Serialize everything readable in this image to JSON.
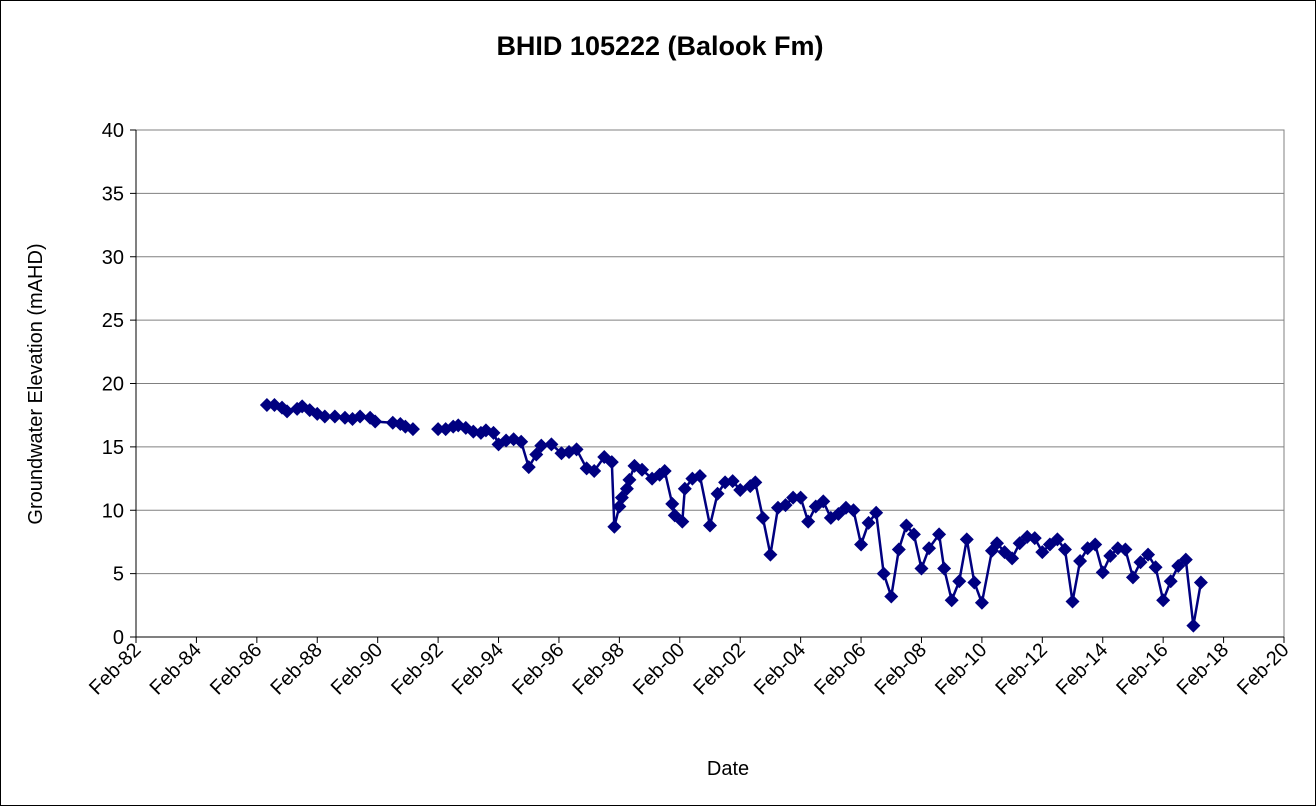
{
  "chart_data": {
    "type": "line",
    "title": "BHID 105222 (Balook Fm)",
    "x_label": "Date",
    "y_label": "Groundwater Elevation (mAHD)",
    "x": [
      "1986-06",
      "1986-09",
      "1986-12",
      "1987-02",
      "1987-06",
      "1987-08",
      "1987-11",
      "1988-02",
      "1988-05",
      "1988-09",
      "1989-01",
      "1989-04",
      "1989-07",
      "1989-11",
      "1990-01",
      "1990-08",
      "1990-11",
      "1991-01",
      "1991-04",
      null,
      "1992-02",
      "1992-05",
      "1992-08",
      "1992-10",
      "1993-01",
      "1993-04",
      "1993-07",
      "1993-09",
      "1993-12",
      "1994-02",
      "1994-05",
      "1994-08",
      "1994-11",
      "1995-02",
      "1995-05",
      "1995-07",
      "1995-11",
      "1996-03",
      "1996-06",
      "1996-09",
      "1997-01",
      "1997-04",
      "1997-08",
      "1997-11",
      "1997-12",
      "1998-02",
      "1998-03",
      "1998-05",
      "1998-06",
      "1998-08",
      "1998-11",
      "1999-03",
      "1999-06",
      "1999-08",
      "1999-11",
      "1999-12",
      "2000-03",
      "2000-04",
      "2000-07",
      "2000-10",
      "2001-02",
      "2001-05",
      "2001-08",
      "2001-11",
      "2002-02",
      "2002-06",
      "2002-08",
      "2002-11",
      "2003-02",
      "2003-05",
      "2003-08",
      "2003-11",
      "2004-02",
      "2004-05",
      "2004-08",
      "2004-11",
      "2005-02",
      "2005-05",
      "2005-08",
      "2005-11",
      "2006-02",
      "2006-05",
      "2006-08",
      "2006-11",
      "2007-02",
      "2007-05",
      "2007-08",
      "2007-11",
      "2008-02",
      "2008-05",
      "2008-09",
      "2008-11",
      "2009-02",
      "2009-05",
      "2009-08",
      "2009-11",
      "2010-02",
      "2010-06",
      "2010-08",
      "2010-11",
      "2011-02",
      "2011-05",
      "2011-08",
      "2011-11",
      "2012-02",
      "2012-05",
      "2012-08",
      "2012-11",
      "2013-02",
      "2013-05",
      "2013-08",
      "2013-11",
      "2014-02",
      "2014-05",
      "2014-08",
      "2014-11",
      "2015-02",
      "2015-05",
      "2015-08",
      "2015-11",
      "2016-02",
      "2016-05",
      "2016-08",
      "2016-11",
      "2017-02",
      "2017-05"
    ],
    "series": [
      {
        "name": "BHID 105222",
        "color": "#000080",
        "values": [
          18.3,
          18.3,
          18.1,
          17.8,
          18.0,
          18.2,
          17.9,
          17.6,
          17.4,
          17.4,
          17.3,
          17.2,
          17.4,
          17.3,
          17.0,
          16.9,
          16.8,
          16.6,
          16.4,
          null,
          16.4,
          16.4,
          16.6,
          16.7,
          16.5,
          16.2,
          16.1,
          16.3,
          16.1,
          15.2,
          15.5,
          15.6,
          15.4,
          13.4,
          14.4,
          15.1,
          15.2,
          14.5,
          14.6,
          14.8,
          13.3,
          13.1,
          14.2,
          13.8,
          8.7,
          10.3,
          11.0,
          11.7,
          12.4,
          13.5,
          13.2,
          12.5,
          12.8,
          13.1,
          10.5,
          9.6,
          9.1,
          11.7,
          12.5,
          12.7,
          8.8,
          11.3,
          12.2,
          12.3,
          11.6,
          11.9,
          12.2,
          9.4,
          6.5,
          10.2,
          10.4,
          11.0,
          11.0,
          9.1,
          10.3,
          10.7,
          9.4,
          9.7,
          10.2,
          10.0,
          7.3,
          9.0,
          9.8,
          5.0,
          3.2,
          6.9,
          8.8,
          8.1,
          5.4,
          7.0,
          8.1,
          5.4,
          2.9,
          4.4,
          7.7,
          4.3,
          2.7,
          6.8,
          7.4,
          6.7,
          6.2,
          7.4,
          7.9,
          7.8,
          6.7,
          7.3,
          7.7,
          6.9,
          2.8,
          6.0,
          7.0,
          7.3,
          5.1,
          6.4,
          7.0,
          6.9,
          4.7,
          5.9,
          6.5,
          5.5,
          2.9,
          4.4,
          5.6,
          6.1,
          0.9,
          4.3
        ]
      }
    ],
    "xlim": [
      "1982-02",
      "2020-02"
    ],
    "xticks": [
      {
        "value": "1982-02",
        "label": "Feb-82"
      },
      {
        "value": "1984-02",
        "label": "Feb-84"
      },
      {
        "value": "1986-02",
        "label": "Feb-86"
      },
      {
        "value": "1988-02",
        "label": "Feb-88"
      },
      {
        "value": "1990-02",
        "label": "Feb-90"
      },
      {
        "value": "1992-02",
        "label": "Feb-92"
      },
      {
        "value": "1994-02",
        "label": "Feb-94"
      },
      {
        "value": "1996-02",
        "label": "Feb-96"
      },
      {
        "value": "1998-02",
        "label": "Feb-98"
      },
      {
        "value": "2000-02",
        "label": "Feb-00"
      },
      {
        "value": "2002-02",
        "label": "Feb-02"
      },
      {
        "value": "2004-02",
        "label": "Feb-04"
      },
      {
        "value": "2006-02",
        "label": "Feb-06"
      },
      {
        "value": "2008-02",
        "label": "Feb-08"
      },
      {
        "value": "2010-02",
        "label": "Feb-10"
      },
      {
        "value": "2012-02",
        "label": "Feb-12"
      },
      {
        "value": "2014-02",
        "label": "Feb-14"
      },
      {
        "value": "2016-02",
        "label": "Feb-16"
      },
      {
        "value": "2018-02",
        "label": "Feb-18"
      },
      {
        "value": "2020-02",
        "label": "Feb-20"
      }
    ],
    "ylim": [
      0,
      40
    ],
    "yticks": [
      0,
      5,
      10,
      15,
      20,
      25,
      30,
      35,
      40
    ],
    "grid": true,
    "marker": "diamond"
  }
}
